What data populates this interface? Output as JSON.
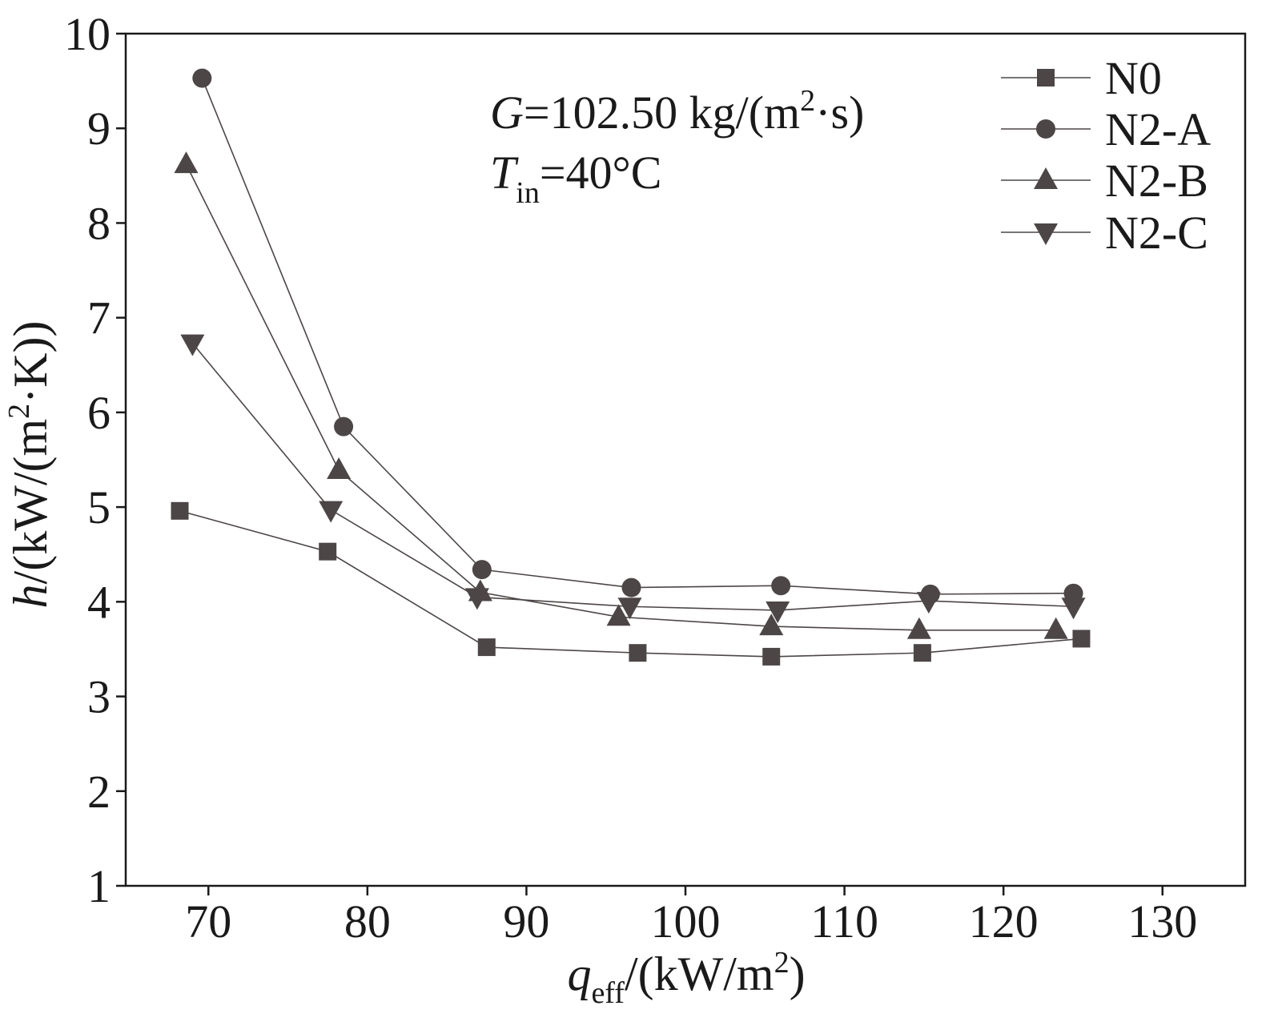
{
  "chart_data": {
    "type": "line",
    "title": "",
    "xlabel": {
      "var": "q",
      "sub": "eff",
      "unit": "/(kW/m",
      "sup": "2",
      "close": ")"
    },
    "ylabel": {
      "var": "h",
      "unit": "/(kW/(m",
      "sup": "2",
      "close": "·K))"
    },
    "xlim": [
      64.8,
      135.2
    ],
    "ylim": [
      1,
      10
    ],
    "x_ticks": [
      70,
      80,
      90,
      100,
      110,
      120,
      130
    ],
    "y_ticks": [
      1,
      2,
      3,
      4,
      5,
      6,
      7,
      8,
      9,
      10
    ],
    "grid": false,
    "legend_position": "top-right",
    "annotations": [
      {
        "var": "G",
        "text": "=102.50 kg/(m",
        "sup": "2",
        "close": "·s)"
      },
      {
        "var": "T",
        "sub": "in",
        "text": "=40°C"
      }
    ],
    "series": [
      {
        "name": "N0",
        "marker": "square-marker",
        "x": [
          68.2,
          77.5,
          87.5,
          97.0,
          105.4,
          114.9,
          124.9
        ],
        "y": [
          4.96,
          4.53,
          3.52,
          3.46,
          3.42,
          3.46,
          3.61
        ]
      },
      {
        "name": "N2-A",
        "marker": "circle-marker",
        "x": [
          69.6,
          78.5,
          87.2,
          96.6,
          106.0,
          115.4,
          124.4
        ],
        "y": [
          9.53,
          5.85,
          4.34,
          4.15,
          4.17,
          4.08,
          4.09
        ]
      },
      {
        "name": "N2-B",
        "marker": "triangle-up-marker",
        "x": [
          68.6,
          78.2,
          87.1,
          95.8,
          105.4,
          114.7,
          123.3
        ],
        "y": [
          8.62,
          5.39,
          4.1,
          3.84,
          3.74,
          3.7,
          3.7
        ]
      },
      {
        "name": "N2-C",
        "marker": "triangle-down-marker",
        "x": [
          69.0,
          77.7,
          86.9,
          96.5,
          105.8,
          115.3,
          124.4
        ],
        "y": [
          6.73,
          4.97,
          4.05,
          3.95,
          3.91,
          4.01,
          3.95
        ]
      }
    ]
  },
  "colors": {
    "series": "#4d4646",
    "axis": "#1a1a1a"
  }
}
